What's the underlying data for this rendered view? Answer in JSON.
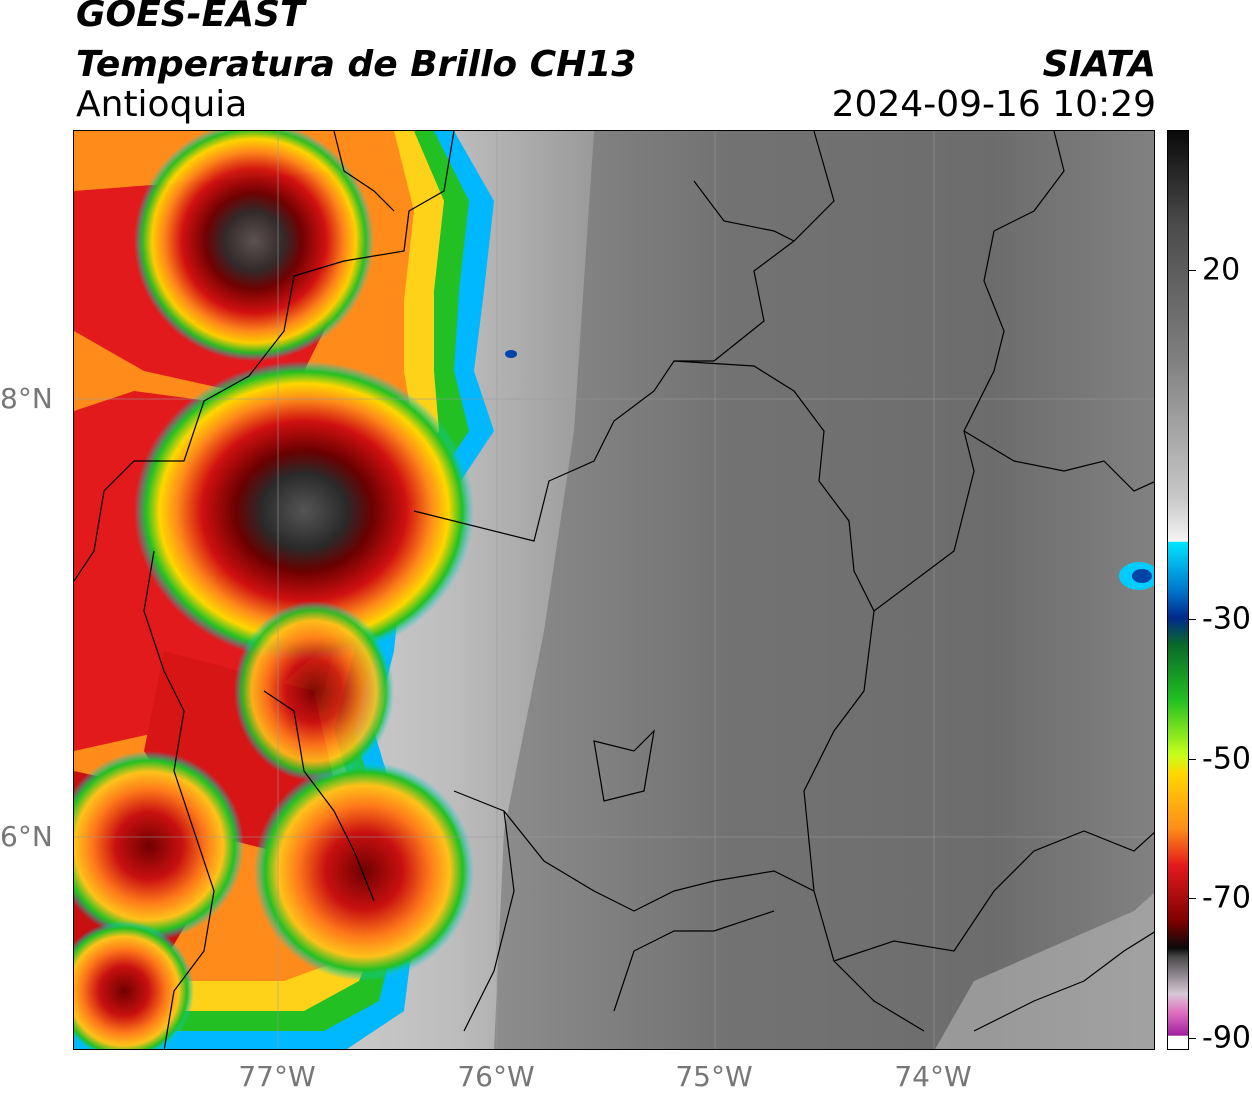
{
  "header": {
    "satellite": "GOES-EAST",
    "product": "Temperatura de Brillo CH13",
    "region": "Antioquia",
    "agency": "SIATA",
    "timestamp": "2024-09-16 10:29"
  },
  "axes": {
    "lat_labels": [
      "8°N",
      "6°N"
    ],
    "lon_labels": [
      "77°W",
      "76°W",
      "75°W",
      "74°W"
    ]
  },
  "colorbar": {
    "ticks": [
      "20",
      "-30",
      "-50",
      "-70",
      "-90"
    ]
  },
  "colors": {
    "cold_top": "#2a2a2a",
    "deep_red": "#7a0000",
    "red": "#e31a1c",
    "orange": "#ff8c1a",
    "yellow": "#ffd700",
    "green": "#22c022",
    "cyan": "#00ccff",
    "blue": "#0033aa",
    "background_gray": "#808080"
  }
}
